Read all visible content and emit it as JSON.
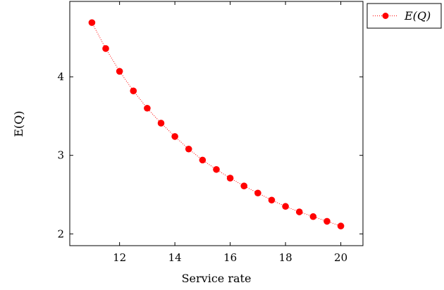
{
  "chart_data": {
    "type": "line",
    "title": "",
    "xlabel": "Service rate",
    "ylabel": "E(Q)",
    "xlim": [
      10.2,
      20.8
    ],
    "ylim": [
      1.85,
      4.96
    ],
    "xticks": [
      12,
      14,
      16,
      18,
      20
    ],
    "xtick_labels": [
      "12",
      "14",
      "16",
      "18",
      "20"
    ],
    "yticks": [
      2,
      3,
      4
    ],
    "ytick_labels": [
      "2",
      "3",
      "4"
    ],
    "grid": false,
    "legend_position": "outside-top-right",
    "series": [
      {
        "name": "E(Q)",
        "color": "#ff0000",
        "marker": "circle",
        "line_style": "dotted",
        "x": [
          11,
          11.5,
          12,
          12.5,
          13,
          13.5,
          14,
          14.5,
          15,
          15.5,
          16,
          16.5,
          17,
          17.5,
          18,
          18.5,
          19,
          19.5,
          20
        ],
        "y": [
          4.69,
          4.36,
          4.07,
          3.82,
          3.6,
          3.41,
          3.24,
          3.08,
          2.94,
          2.82,
          2.71,
          2.61,
          2.52,
          2.43,
          2.35,
          2.28,
          2.22,
          2.16,
          2.1
        ]
      }
    ]
  }
}
